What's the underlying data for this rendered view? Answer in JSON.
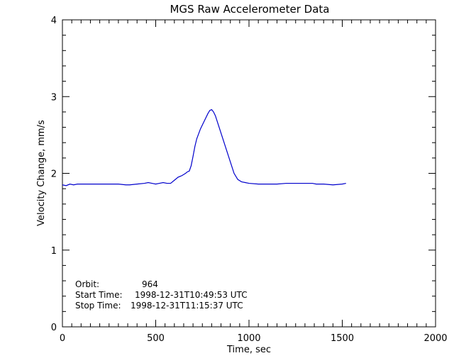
{
  "chart_data": {
    "type": "line",
    "title": "MGS Raw Accelerometer Data",
    "xlabel": "Time, sec",
    "ylabel": "Velocity Change, mm/s",
    "xlim": [
      0,
      2000
    ],
    "ylim": [
      0,
      4
    ],
    "xticks": [
      0,
      500,
      1000,
      1500,
      2000
    ],
    "yticks": [
      0,
      1,
      2,
      3,
      4
    ],
    "grid": false,
    "line_color": "#0000cc",
    "series": [
      {
        "x": [
          0,
          20,
          40,
          60,
          80,
          100,
          150,
          200,
          250,
          300,
          340,
          360,
          400,
          440,
          460,
          480,
          500,
          520,
          540,
          560,
          580,
          600,
          620,
          640,
          660,
          670,
          680,
          690,
          700,
          710,
          720,
          740,
          760,
          780,
          790,
          800,
          810,
          820,
          840,
          860,
          880,
          900,
          920,
          940,
          960,
          980,
          1000,
          1050,
          1100,
          1150,
          1200,
          1250,
          1300,
          1320,
          1340,
          1360,
          1400,
          1450,
          1500,
          1520
        ],
        "y": [
          1.85,
          1.84,
          1.86,
          1.85,
          1.86,
          1.86,
          1.86,
          1.86,
          1.86,
          1.86,
          1.85,
          1.85,
          1.86,
          1.87,
          1.88,
          1.87,
          1.86,
          1.87,
          1.88,
          1.87,
          1.87,
          1.91,
          1.95,
          1.97,
          2.0,
          2.02,
          2.03,
          2.1,
          2.22,
          2.35,
          2.45,
          2.58,
          2.68,
          2.78,
          2.82,
          2.83,
          2.8,
          2.75,
          2.6,
          2.45,
          2.3,
          2.15,
          2.0,
          1.92,
          1.89,
          1.88,
          1.87,
          1.86,
          1.86,
          1.86,
          1.87,
          1.87,
          1.87,
          1.87,
          1.87,
          1.86,
          1.86,
          1.85,
          1.86,
          1.87
        ]
      }
    ],
    "annotations": [
      {
        "label": "Orbit:",
        "value": "964"
      },
      {
        "label": "Start Time:",
        "value": "1998-12-31T10:49:53 UTC"
      },
      {
        "label": "Stop Time:",
        "value": "1998-12-31T11:15:37 UTC"
      }
    ]
  }
}
